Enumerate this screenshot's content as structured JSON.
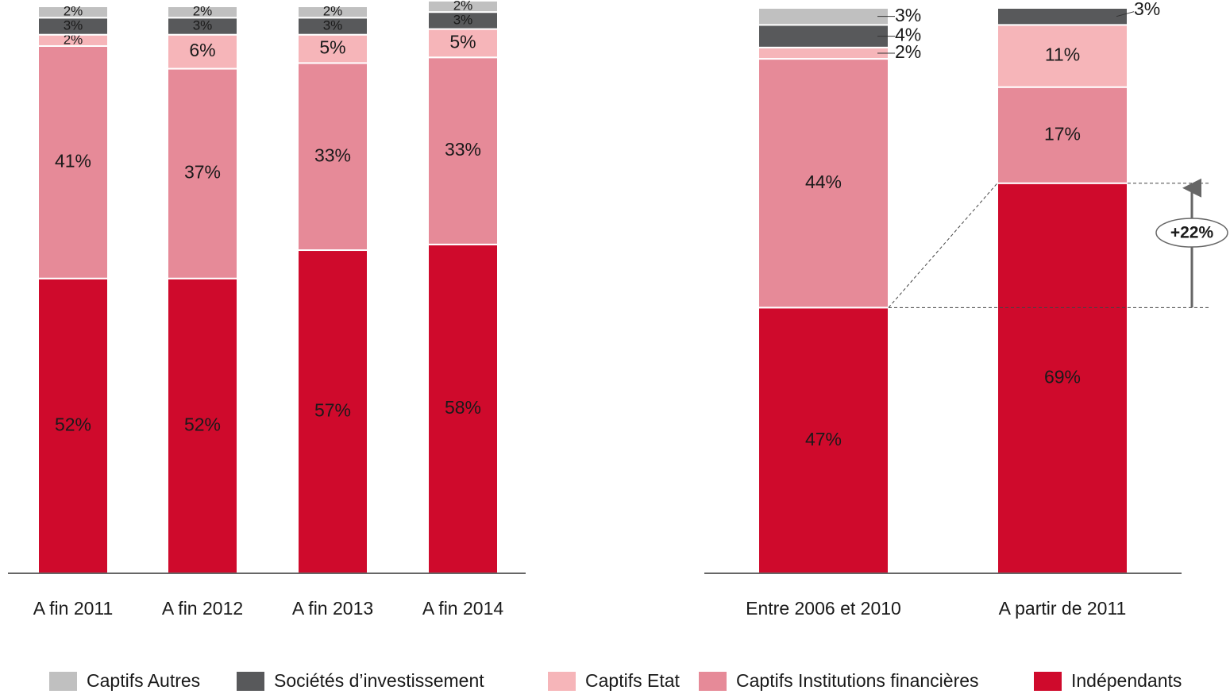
{
  "chart_data": [
    {
      "type": "bar",
      "stacked": true,
      "categories": [
        "A fin 2011",
        "A fin 2012",
        "A fin 2013",
        "A fin 2014"
      ],
      "ylim": [
        0,
        100
      ],
      "series": [
        {
          "name": "Indépendants",
          "color": "#cf0a2c",
          "values": [
            52,
            52,
            57,
            58
          ],
          "value_labels": [
            "52%",
            "52%",
            "57%",
            "58%"
          ]
        },
        {
          "name": "Captifs Institutions financières",
          "color": "#e68a98",
          "values": [
            41,
            37,
            33,
            33
          ],
          "value_labels": [
            "41%",
            "37%",
            "33%",
            "33%"
          ]
        },
        {
          "name": "Captifs Etat",
          "color": "#f6b5b9",
          "values": [
            2,
            6,
            5,
            5
          ],
          "value_labels": [
            "2%",
            "6%",
            "5%",
            "5%"
          ]
        },
        {
          "name": "Sociétés d’investissement",
          "color": "#58595b",
          "values": [
            3,
            3,
            3,
            3
          ],
          "value_labels": [
            "3%",
            "3%",
            "3%",
            "3%"
          ]
        },
        {
          "name": "Captifs Autres",
          "color": "#c0c0c0",
          "values": [
            2,
            2,
            2,
            2
          ],
          "value_labels": [
            "2%",
            "2%",
            "2%",
            "2%"
          ]
        }
      ]
    },
    {
      "type": "bar",
      "stacked": true,
      "categories": [
        "Entre 2006 et 2010",
        "A partir de 2011"
      ],
      "ylim": [
        0,
        100
      ],
      "annotation": "+22%",
      "series": [
        {
          "name": "Indépendants",
          "color": "#cf0a2c",
          "values": [
            47,
            69
          ],
          "value_labels": [
            "47%",
            "69%"
          ]
        },
        {
          "name": "Captifs Institutions financières",
          "color": "#e68a98",
          "values": [
            44,
            17
          ],
          "value_labels": [
            "44%",
            "17%"
          ]
        },
        {
          "name": "Captifs Etat",
          "color": "#f6b5b9",
          "values": [
            2,
            11
          ],
          "value_labels": [
            "2%",
            "11%"
          ]
        },
        {
          "name": "Sociétés d’investissement",
          "color": "#58595b",
          "values": [
            4,
            3
          ],
          "value_labels": [
            "4%",
            "3%"
          ]
        },
        {
          "name": "Captifs Autres",
          "color": "#c0c0c0",
          "values": [
            3,
            null
          ],
          "value_labels": [
            "3%",
            null
          ]
        }
      ]
    }
  ]
}
